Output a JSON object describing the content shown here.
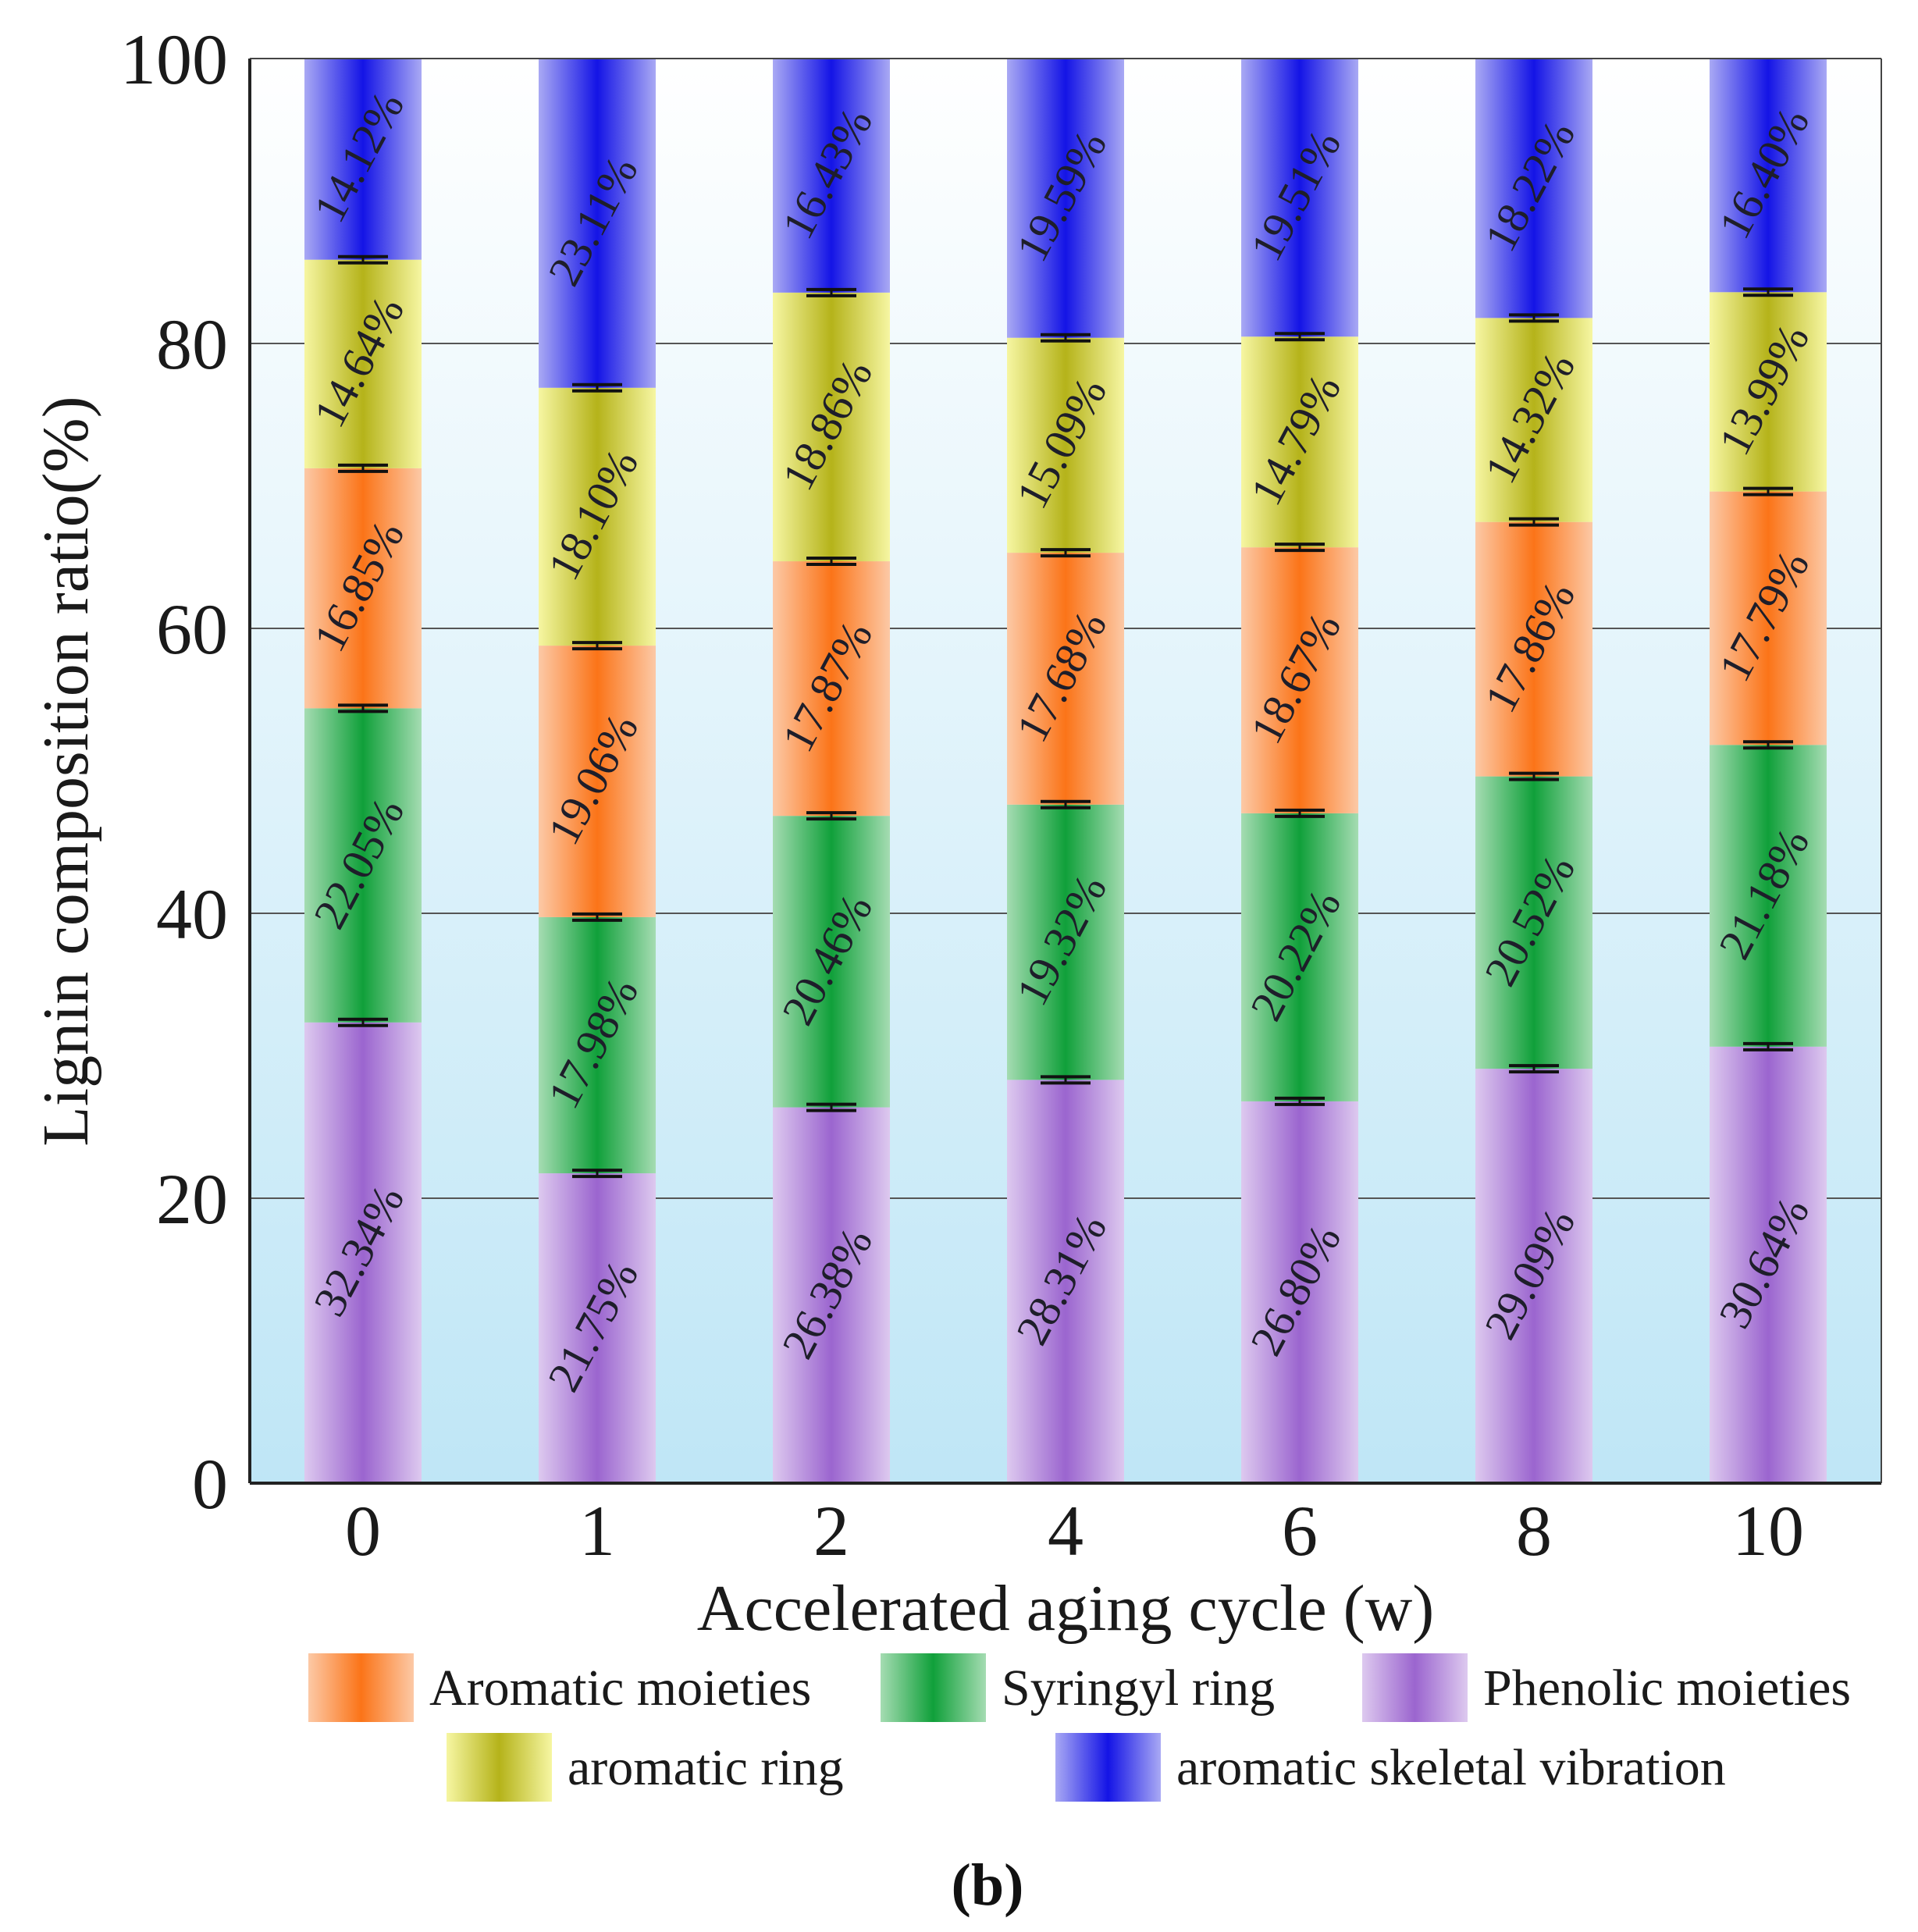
{
  "chart_data": {
    "type": "bar",
    "stacked": true,
    "title": "",
    "xlabel": "Accelerated aging cycle (w)",
    "ylabel": "Lignin composition ratio(%)",
    "ylim": [
      0,
      100
    ],
    "yticks": [
      "0",
      "20",
      "40",
      "60",
      "80",
      "100"
    ],
    "categories": [
      "0",
      "1",
      "2",
      "4",
      "6",
      "8",
      "10"
    ],
    "series": [
      {
        "name": "Phenolic moieties",
        "color_dark": "#9b65cf",
        "color_light": "#ddc9ef",
        "values": [
          32.34,
          21.75,
          26.38,
          28.31,
          26.8,
          29.09,
          30.64
        ],
        "labels": [
          "32.34%",
          "21.75%",
          "26.38%",
          "28.31%",
          "26.80%",
          "29.09%",
          "30.64%"
        ]
      },
      {
        "name": "Syringyl ring",
        "color_dark": "#10a03a",
        "color_light": "#a5dcb2",
        "values": [
          22.05,
          17.98,
          20.46,
          19.32,
          20.22,
          20.52,
          21.18
        ],
        "labels": [
          "22.05%",
          "17.98%",
          "20.46%",
          "19.32%",
          "20.22%",
          "20.52%",
          "21.18%"
        ]
      },
      {
        "name": "Aromatic moieties",
        "color_dark": "#fb7418",
        "color_light": "#fcc9a6",
        "values": [
          16.85,
          19.06,
          17.87,
          17.68,
          18.67,
          17.86,
          17.79
        ],
        "labels": [
          "16.85%",
          "19.06%",
          "17.87%",
          "17.68%",
          "18.67%",
          "17.86%",
          "17.79%"
        ]
      },
      {
        "name": "aromatic ring",
        "color_dark": "#b5b31a",
        "color_light": "#f6f6a2",
        "values": [
          14.64,
          18.1,
          18.86,
          15.09,
          14.79,
          14.32,
          13.99
        ],
        "labels": [
          "14.64%",
          "18.10%",
          "18.86%",
          "15.09%",
          "14.79%",
          "14.32%",
          "13.99%"
        ]
      },
      {
        "name": "aromatic skeletal vibration",
        "color_dark": "#1414e6",
        "color_light": "#a9a9f4",
        "values": [
          14.12,
          23.11,
          16.43,
          19.59,
          19.51,
          18.22,
          16.4
        ],
        "labels": [
          "14.12%",
          "23.11%",
          "16.43%",
          "19.59%",
          "19.51%",
          "18.22%",
          "16.40%"
        ]
      }
    ],
    "legend": {
      "placement": "bottom",
      "rows": [
        [
          "Aromatic moieties",
          "Syringyl ring",
          "Phenolic moieties"
        ],
        [
          "aromatic ring",
          "aromatic skeletal vibration"
        ]
      ]
    },
    "grid": true,
    "error_bars": true,
    "caption": "(b)"
  },
  "colors": {
    "background_top": "#ffffff",
    "background_bottom": "#bfe6f6",
    "grid": "#555555",
    "axis": "#222222"
  }
}
